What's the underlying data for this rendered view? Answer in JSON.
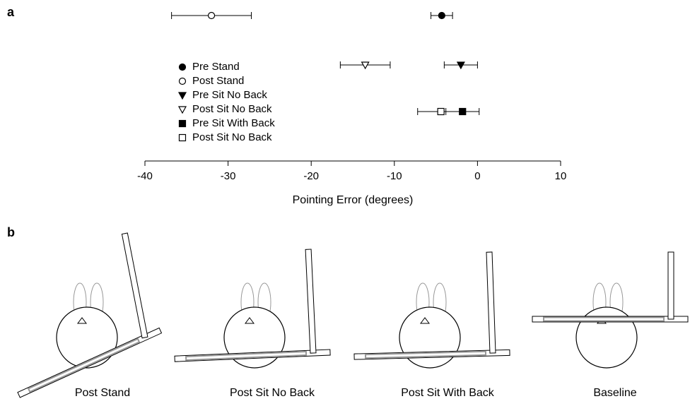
{
  "chart_data": {
    "type": "errorbar",
    "panel_label": "a",
    "xlabel": "Pointing Error (degrees)",
    "xlim": [
      -40,
      10
    ],
    "xticks": [
      -40,
      -30,
      -20,
      -10,
      0,
      10
    ],
    "series": [
      {
        "name": "Pre Stand",
        "marker": "circle",
        "filled": true,
        "color": "#000000",
        "value": -4.3,
        "error": 1.3
      },
      {
        "name": "Post Stand",
        "marker": "circle",
        "filled": false,
        "color": "#000000",
        "value": -32,
        "error": 4.8
      },
      {
        "name": "Pre Sit No Back",
        "marker": "triangle",
        "filled": true,
        "color": "#000000",
        "value": -2,
        "error": 2
      },
      {
        "name": "Post Sit No Back",
        "marker": "triangle",
        "filled": false,
        "color": "#000000",
        "value": -13.5,
        "error": 3
      },
      {
        "name": "Pre Sit With Back",
        "marker": "square",
        "filled": true,
        "color": "#000000",
        "value": -1.8,
        "error": 2
      },
      {
        "name": "Post Sit No Back",
        "marker": "square",
        "filled": false,
        "color": "#000000",
        "value": -4.4,
        "error": 2.8
      }
    ]
  },
  "panel_b": {
    "label": "b",
    "captions": [
      "Post Stand",
      "Post Sit No Back",
      "Post Sit With Back",
      "Baseline"
    ]
  }
}
